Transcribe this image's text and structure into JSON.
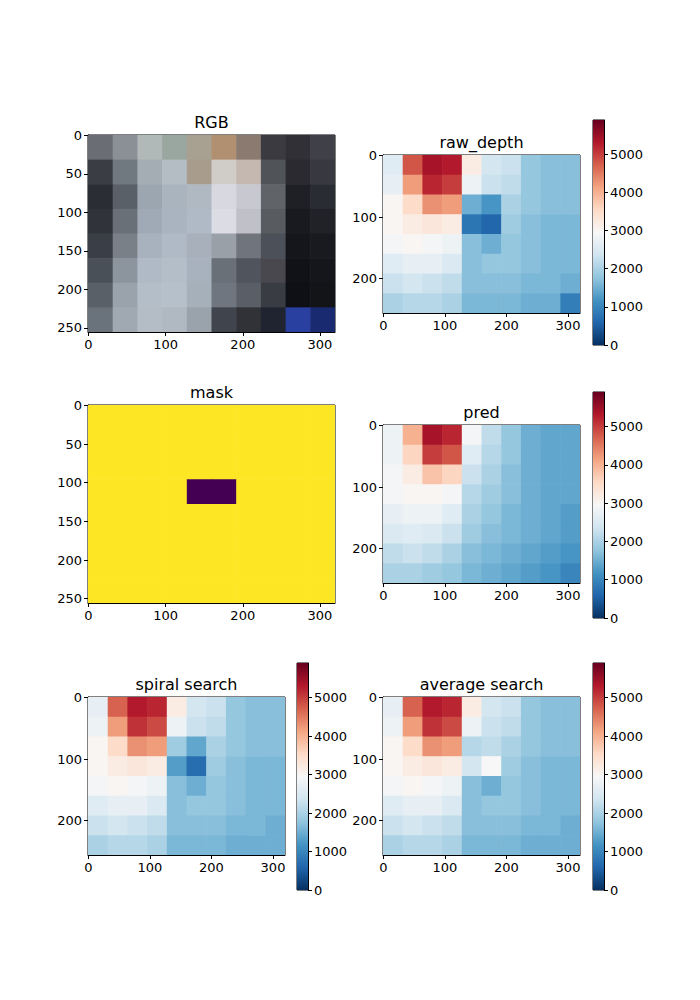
{
  "chart_data": [
    {
      "type": "image",
      "title": "RGB",
      "xlim": [
        -0.5,
        319.5
      ],
      "ylim": [
        255.5,
        -0.5
      ],
      "xticks": [
        0,
        100,
        200,
        300
      ],
      "yticks": [
        0,
        50,
        100,
        150,
        200,
        250
      ],
      "colors": [
        [
          "#6a6e74",
          "#8a9096",
          "#b0b8b8",
          "#9aa6a0",
          "#a8a090",
          "#b09070",
          "#8a7a70",
          "#3a3a40",
          "#303036",
          "#404048"
        ],
        [
          "#3a3e44",
          "#707880",
          "#a4acb4",
          "#b4bcc4",
          "#a89c8c",
          "#d0ccc8",
          "#c4b8b0",
          "#505458",
          "#2a2a30",
          "#383840"
        ],
        [
          "#2a2e34",
          "#5a6068",
          "#9ca6b0",
          "#aab4be",
          "#b0b8c2",
          "#d8d8e0",
          "#c8c8d0",
          "#606468",
          "#1e2026",
          "#2a2c34"
        ],
        [
          "#30343a",
          "#6a7078",
          "#a0aab6",
          "#aab4c0",
          "#b0bac6",
          "#dcdce4",
          "#c0c0c8",
          "#585c60",
          "#181a20",
          "#202228"
        ],
        [
          "#3a3e46",
          "#7a8088",
          "#a8b2be",
          "#b0bac6",
          "#a8b0bc",
          "#9aa0a8",
          "#70747c",
          "#4c5058",
          "#14161c",
          "#181a20"
        ],
        [
          "#4a5058",
          "#8c949e",
          "#b0bac6",
          "#b4bec8",
          "#a8b2be",
          "#6a7078",
          "#50545c",
          "#48484e",
          "#101218",
          "#14161c"
        ],
        [
          "#5a6068",
          "#9aa2ac",
          "#b4bec8",
          "#b6c0ca",
          "#a6b0ba",
          "#707680",
          "#5a5e66",
          "#3a3c44",
          "#0e1016",
          "#121418"
        ],
        [
          "#6a727c",
          "#a0a8b2",
          "#b4bcc6",
          "#b0b8c2",
          "#9aa2ac",
          "#40444c",
          "#303238",
          "#202430",
          "#2a40a0",
          "#1a2a70"
        ]
      ]
    },
    {
      "type": "heatmap",
      "title": "raw_depth",
      "xlim": [
        -0.5,
        319.5
      ],
      "ylim": [
        255.5,
        -0.5
      ],
      "xticks": [
        0,
        100,
        200,
        300
      ],
      "yticks": [
        0,
        100,
        200
      ],
      "color": "RdBu_r",
      "color_range": [
        0,
        5900
      ],
      "colorbar_ticks": [
        0,
        1000,
        2000,
        3000,
        4000,
        5000
      ],
      "cells": [
        [
          2600,
          4800,
          5400,
          5300,
          3200,
          2400,
          2300,
          1800,
          1700,
          1700
        ],
        [
          2700,
          4200,
          5200,
          5000,
          2800,
          2300,
          2200,
          1800,
          1700,
          1700
        ],
        [
          3000,
          3500,
          4300,
          4200,
          1500,
          1200,
          2000,
          1800,
          1700,
          1700
        ],
        [
          3000,
          3200,
          3300,
          3200,
          800,
          600,
          1900,
          1700,
          1600,
          1600
        ],
        [
          2900,
          3000,
          2900,
          2800,
          1700,
          1500,
          1800,
          1700,
          1600,
          1600
        ],
        [
          2600,
          2700,
          2700,
          2500,
          1700,
          1800,
          1800,
          1700,
          1600,
          1600
        ],
        [
          2300,
          2400,
          2300,
          2200,
          1700,
          1700,
          1700,
          1600,
          1600,
          1500
        ],
        [
          2000,
          2100,
          2100,
          2000,
          1600,
          1600,
          1600,
          1500,
          1500,
          900
        ]
      ]
    },
    {
      "type": "heatmap",
      "title": "mask",
      "xlim": [
        -0.5,
        319.5
      ],
      "ylim": [
        255.5,
        -0.5
      ],
      "xticks": [
        0,
        100,
        200,
        300
      ],
      "yticks": [
        0,
        50,
        100,
        150,
        200,
        250
      ],
      "color": "viridis",
      "color_range": [
        0,
        1
      ],
      "cells": [
        [
          1,
          1,
          1,
          1,
          1,
          1,
          1,
          1,
          1,
          1
        ],
        [
          1,
          1,
          1,
          1,
          1,
          1,
          1,
          1,
          1,
          1
        ],
        [
          1,
          1,
          1,
          1,
          1,
          1,
          1,
          1,
          1,
          1
        ],
        [
          1,
          1,
          1,
          1,
          0,
          0,
          1,
          1,
          1,
          1
        ],
        [
          1,
          1,
          1,
          1,
          1,
          1,
          1,
          1,
          1,
          1
        ],
        [
          1,
          1,
          1,
          1,
          1,
          1,
          1,
          1,
          1,
          1
        ],
        [
          1,
          1,
          1,
          1,
          1,
          1,
          1,
          1,
          1,
          1
        ],
        [
          1,
          1,
          1,
          1,
          1,
          1,
          1,
          1,
          1,
          1
        ]
      ]
    },
    {
      "type": "heatmap",
      "title": "pred",
      "xlim": [
        -0.5,
        319.5
      ],
      "ylim": [
        255.5,
        -0.5
      ],
      "xticks": [
        0,
        100,
        200,
        300
      ],
      "yticks": [
        0,
        100,
        200
      ],
      "color": "RdBu_r",
      "color_range": [
        0,
        5900
      ],
      "colorbar_ticks": [
        0,
        1000,
        2000,
        3000,
        4000,
        5000
      ],
      "cells": [
        [
          2800,
          4000,
          5400,
          5200,
          2900,
          2200,
          1800,
          1500,
          1400,
          1400
        ],
        [
          2800,
          3600,
          5000,
          4800,
          2600,
          2100,
          1800,
          1500,
          1400,
          1400
        ],
        [
          2900,
          3200,
          3800,
          3600,
          2300,
          2000,
          1700,
          1500,
          1400,
          1400
        ],
        [
          2900,
          3000,
          3000,
          2900,
          2100,
          1900,
          1700,
          1500,
          1400,
          1400
        ],
        [
          2700,
          2800,
          2800,
          2600,
          2000,
          1800,
          1600,
          1500,
          1400,
          1300
        ],
        [
          2500,
          2600,
          2500,
          2300,
          1900,
          1700,
          1600,
          1500,
          1400,
          1300
        ],
        [
          2200,
          2300,
          2200,
          2000,
          1700,
          1600,
          1500,
          1400,
          1300,
          1200
        ],
        [
          2000,
          2000,
          1900,
          1800,
          1600,
          1500,
          1400,
          1300,
          1200,
          1000
        ]
      ]
    },
    {
      "type": "heatmap",
      "title": "spiral search",
      "xlim": [
        -0.5,
        319.5
      ],
      "ylim": [
        255.5,
        -0.5
      ],
      "xticks": [
        0,
        100,
        200,
        300
      ],
      "yticks": [
        0,
        100,
        200
      ],
      "color": "RdBu_r",
      "color_range": [
        0,
        5900
      ],
      "colorbar_ticks": [
        0,
        1000,
        2000,
        3000,
        4000,
        5000
      ],
      "cells": [
        [
          2700,
          4700,
          5300,
          5200,
          3200,
          2400,
          2300,
          1800,
          1700,
          1700
        ],
        [
          2800,
          4200,
          5100,
          4900,
          2800,
          2300,
          2200,
          1800,
          1700,
          1700
        ],
        [
          3000,
          3500,
          4300,
          4200,
          1900,
          1400,
          2000,
          1800,
          1700,
          1700
        ],
        [
          3000,
          3200,
          3300,
          3200,
          1300,
          700,
          1900,
          1700,
          1600,
          1600
        ],
        [
          2900,
          3000,
          2900,
          2800,
          1700,
          1500,
          1800,
          1700,
          1600,
          1600
        ],
        [
          2600,
          2700,
          2700,
          2500,
          1700,
          1800,
          1800,
          1700,
          1600,
          1600
        ],
        [
          2300,
          2400,
          2300,
          2200,
          1700,
          1700,
          1700,
          1600,
          1600,
          1500
        ],
        [
          2000,
          2100,
          2100,
          2000,
          1600,
          1600,
          1600,
          1500,
          1500,
          1500
        ]
      ]
    },
    {
      "type": "heatmap",
      "title": "average search",
      "xlim": [
        -0.5,
        319.5
      ],
      "ylim": [
        255.5,
        -0.5
      ],
      "xticks": [
        0,
        100,
        200,
        300
      ],
      "yticks": [
        0,
        100,
        200
      ],
      "color": "RdBu_r",
      "color_range": [
        0,
        5900
      ],
      "colorbar_ticks": [
        0,
        1000,
        2000,
        3000,
        4000,
        5000
      ],
      "cells": [
        [
          2700,
          4700,
          5300,
          5200,
          3200,
          2400,
          2300,
          1800,
          1700,
          1700
        ],
        [
          2800,
          4200,
          5100,
          4900,
          2800,
          2300,
          2200,
          1800,
          1700,
          1700
        ],
        [
          3000,
          3500,
          4300,
          4200,
          2100,
          2200,
          2000,
          1800,
          1700,
          1700
        ],
        [
          3000,
          3200,
          3300,
          3200,
          2400,
          2950,
          1900,
          1700,
          1600,
          1600
        ],
        [
          2900,
          3000,
          2900,
          2800,
          1700,
          1500,
          1800,
          1700,
          1600,
          1600
        ],
        [
          2600,
          2700,
          2700,
          2500,
          1700,
          1800,
          1800,
          1700,
          1600,
          1600
        ],
        [
          2300,
          2400,
          2300,
          2200,
          1700,
          1700,
          1700,
          1600,
          1600,
          1500
        ],
        [
          2000,
          2100,
          2100,
          2000,
          1600,
          1600,
          1600,
          1500,
          1500,
          1500
        ]
      ]
    }
  ]
}
